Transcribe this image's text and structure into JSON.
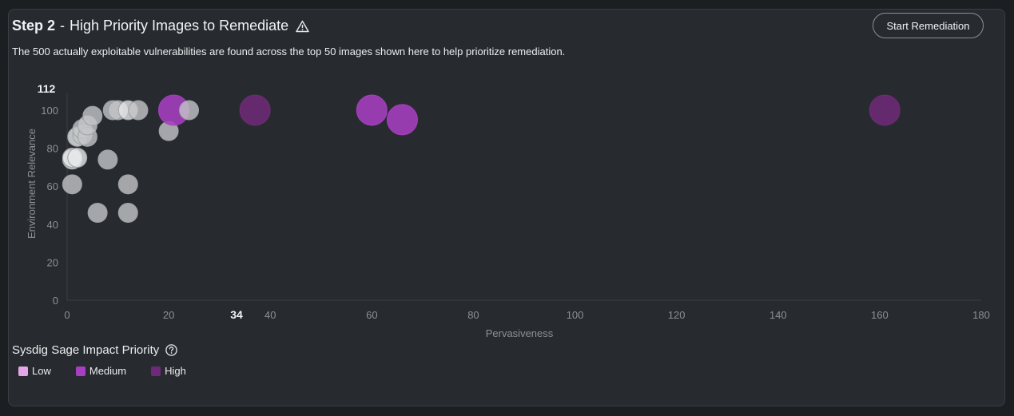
{
  "header": {
    "step": "Step 2",
    "title": "High Priority Images to Remediate",
    "warning_icon": "warning-triangle-icon",
    "subtitle": "The 500 actually exploitable vulnerabilities are found across the top 50 images shown here to help prioritize remediation.",
    "button_label": "Start Remediation"
  },
  "legend": {
    "title": "Sysdig Sage Impact Priority",
    "help_icon": "question-circle-icon",
    "items": [
      {
        "label": "Low",
        "color": "#e4a6e8"
      },
      {
        "label": "Medium",
        "color": "#a73fc0"
      },
      {
        "label": "High",
        "color": "#6e2a78"
      }
    ]
  },
  "chart_data": {
    "type": "scatter",
    "xlabel": "Pervasiveness",
    "ylabel": "Environment Relevance",
    "xlim": [
      0,
      180
    ],
    "ylim": [
      0,
      100
    ],
    "x_ticks": [
      "0",
      "20",
      "40",
      "60",
      "80",
      "100",
      "120",
      "140",
      "160",
      "180"
    ],
    "y_ticks": [
      "0",
      "20",
      "40",
      "60",
      "80",
      "100"
    ],
    "highlight_x": "34",
    "highlight_y": "112",
    "grid": false,
    "legend_position": "bottom-left",
    "colors": {
      "none": "#c4c6c8",
      "none_light": "#e6e7e8",
      "medium": "#a73fc0",
      "high": "#6e2a78"
    },
    "points": [
      {
        "x": 1,
        "y": 61,
        "r": 12,
        "priority": "none"
      },
      {
        "x": 1,
        "y": 74,
        "r": 12,
        "priority": "none_light"
      },
      {
        "x": 1,
        "y": 75,
        "r": 12,
        "priority": "none_light"
      },
      {
        "x": 2,
        "y": 75,
        "r": 12,
        "priority": "none_light"
      },
      {
        "x": 2,
        "y": 86,
        "r": 12,
        "priority": "none_light"
      },
      {
        "x": 3,
        "y": 87,
        "r": 12,
        "priority": "none"
      },
      {
        "x": 3,
        "y": 90,
        "r": 12,
        "priority": "none"
      },
      {
        "x": 4,
        "y": 86,
        "r": 12,
        "priority": "none"
      },
      {
        "x": 4,
        "y": 92,
        "r": 12,
        "priority": "none"
      },
      {
        "x": 5,
        "y": 97,
        "r": 12,
        "priority": "none"
      },
      {
        "x": 6,
        "y": 46,
        "r": 12,
        "priority": "none"
      },
      {
        "x": 8,
        "y": 74,
        "r": 12,
        "priority": "none"
      },
      {
        "x": 9,
        "y": 100,
        "r": 12,
        "priority": "none"
      },
      {
        "x": 10,
        "y": 100,
        "r": 12,
        "priority": "none"
      },
      {
        "x": 12,
        "y": 100,
        "r": 12,
        "priority": "none_light"
      },
      {
        "x": 12,
        "y": 61,
        "r": 12,
        "priority": "none"
      },
      {
        "x": 12,
        "y": 46,
        "r": 12,
        "priority": "none"
      },
      {
        "x": 14,
        "y": 100,
        "r": 12,
        "priority": "none"
      },
      {
        "x": 20,
        "y": 89,
        "r": 12,
        "priority": "none"
      },
      {
        "x": 21,
        "y": 100,
        "r": 19,
        "priority": "medium"
      },
      {
        "x": 24,
        "y": 100,
        "r": 12,
        "priority": "none"
      },
      {
        "x": 37,
        "y": 100,
        "r": 19,
        "priority": "high"
      },
      {
        "x": 60,
        "y": 100,
        "r": 19,
        "priority": "medium"
      },
      {
        "x": 66,
        "y": 95,
        "r": 19,
        "priority": "medium"
      },
      {
        "x": 161,
        "y": 100,
        "r": 19,
        "priority": "high"
      }
    ]
  }
}
